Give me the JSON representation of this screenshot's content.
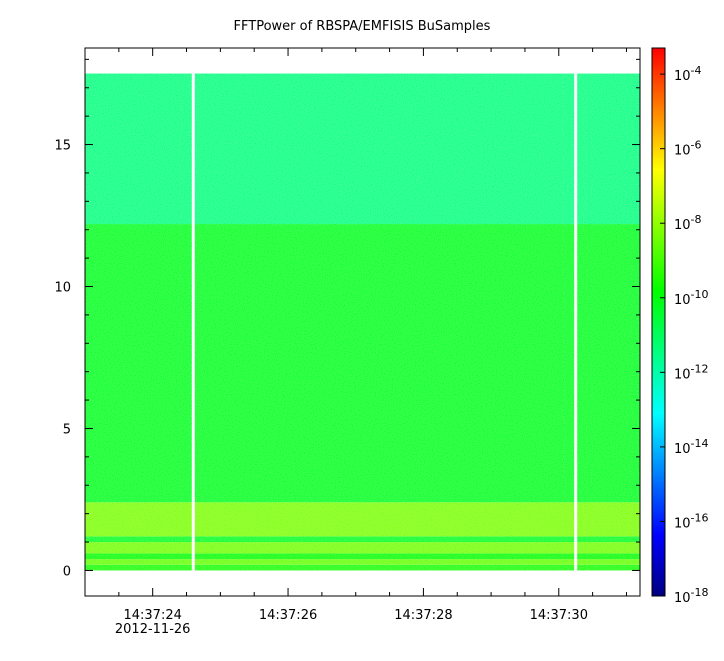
{
  "chart_data": {
    "type": "heatmap",
    "title": "FFTPower of RBSPA/EMFISIS  BuSamples",
    "xlabel": "",
    "ylabel": "",
    "x_ticks": [
      "14:37:24",
      "14:37:26",
      "14:37:28",
      "14:37:30"
    ],
    "x_tick_values_s": [
      24,
      26,
      28,
      30
    ],
    "x_date_label": "2012-11-26",
    "x_range_s": [
      23.0,
      31.2
    ],
    "y_ticks": [
      "0",
      "5",
      "10",
      "15"
    ],
    "y_tick_values": [
      0,
      5,
      10,
      15
    ],
    "y_range": [
      -0.9,
      18.4
    ],
    "data_y_range": [
      0,
      17.5
    ],
    "colorbar": {
      "scale": "log",
      "range_exp": [
        -18,
        -3.3
      ],
      "ticks": [
        {
          "base": "10",
          "exp": "-4",
          "value": -4
        },
        {
          "base": "10",
          "exp": "-6",
          "value": -6
        },
        {
          "base": "10",
          "exp": "-8",
          "value": -8
        },
        {
          "base": "10",
          "exp": "-10",
          "value": -10
        },
        {
          "base": "10",
          "exp": "-12",
          "value": -12
        },
        {
          "base": "10",
          "exp": "-14",
          "value": -14
        },
        {
          "base": "10",
          "exp": "-16",
          "value": -16
        },
        {
          "base": "10",
          "exp": "-18",
          "value": -18
        }
      ],
      "colors": [
        "#000080",
        "#0000ff",
        "#0080ff",
        "#00ffff",
        "#00ff80",
        "#00ff00",
        "#80ff00",
        "#ffff00",
        "#ff8000",
        "#ff0000"
      ]
    },
    "bands": [
      {
        "y_from": 0.0,
        "y_to": 0.2,
        "log_power": -9.6
      },
      {
        "y_from": 0.2,
        "y_to": 0.4,
        "log_power": -8.6
      },
      {
        "y_from": 0.4,
        "y_to": 0.6,
        "log_power": -9.8
      },
      {
        "y_from": 0.6,
        "y_to": 1.0,
        "log_power": -8.4
      },
      {
        "y_from": 1.0,
        "y_to": 1.2,
        "log_power": -10.2
      },
      {
        "y_from": 1.2,
        "y_to": 2.4,
        "log_power": -8.3
      },
      {
        "y_from": 2.4,
        "y_to": 12.2,
        "log_power": -10.2
      },
      {
        "y_from": 12.2,
        "y_to": 17.5,
        "log_power": -11.4
      }
    ],
    "gaps_s": [
      24.6,
      30.25
    ]
  }
}
